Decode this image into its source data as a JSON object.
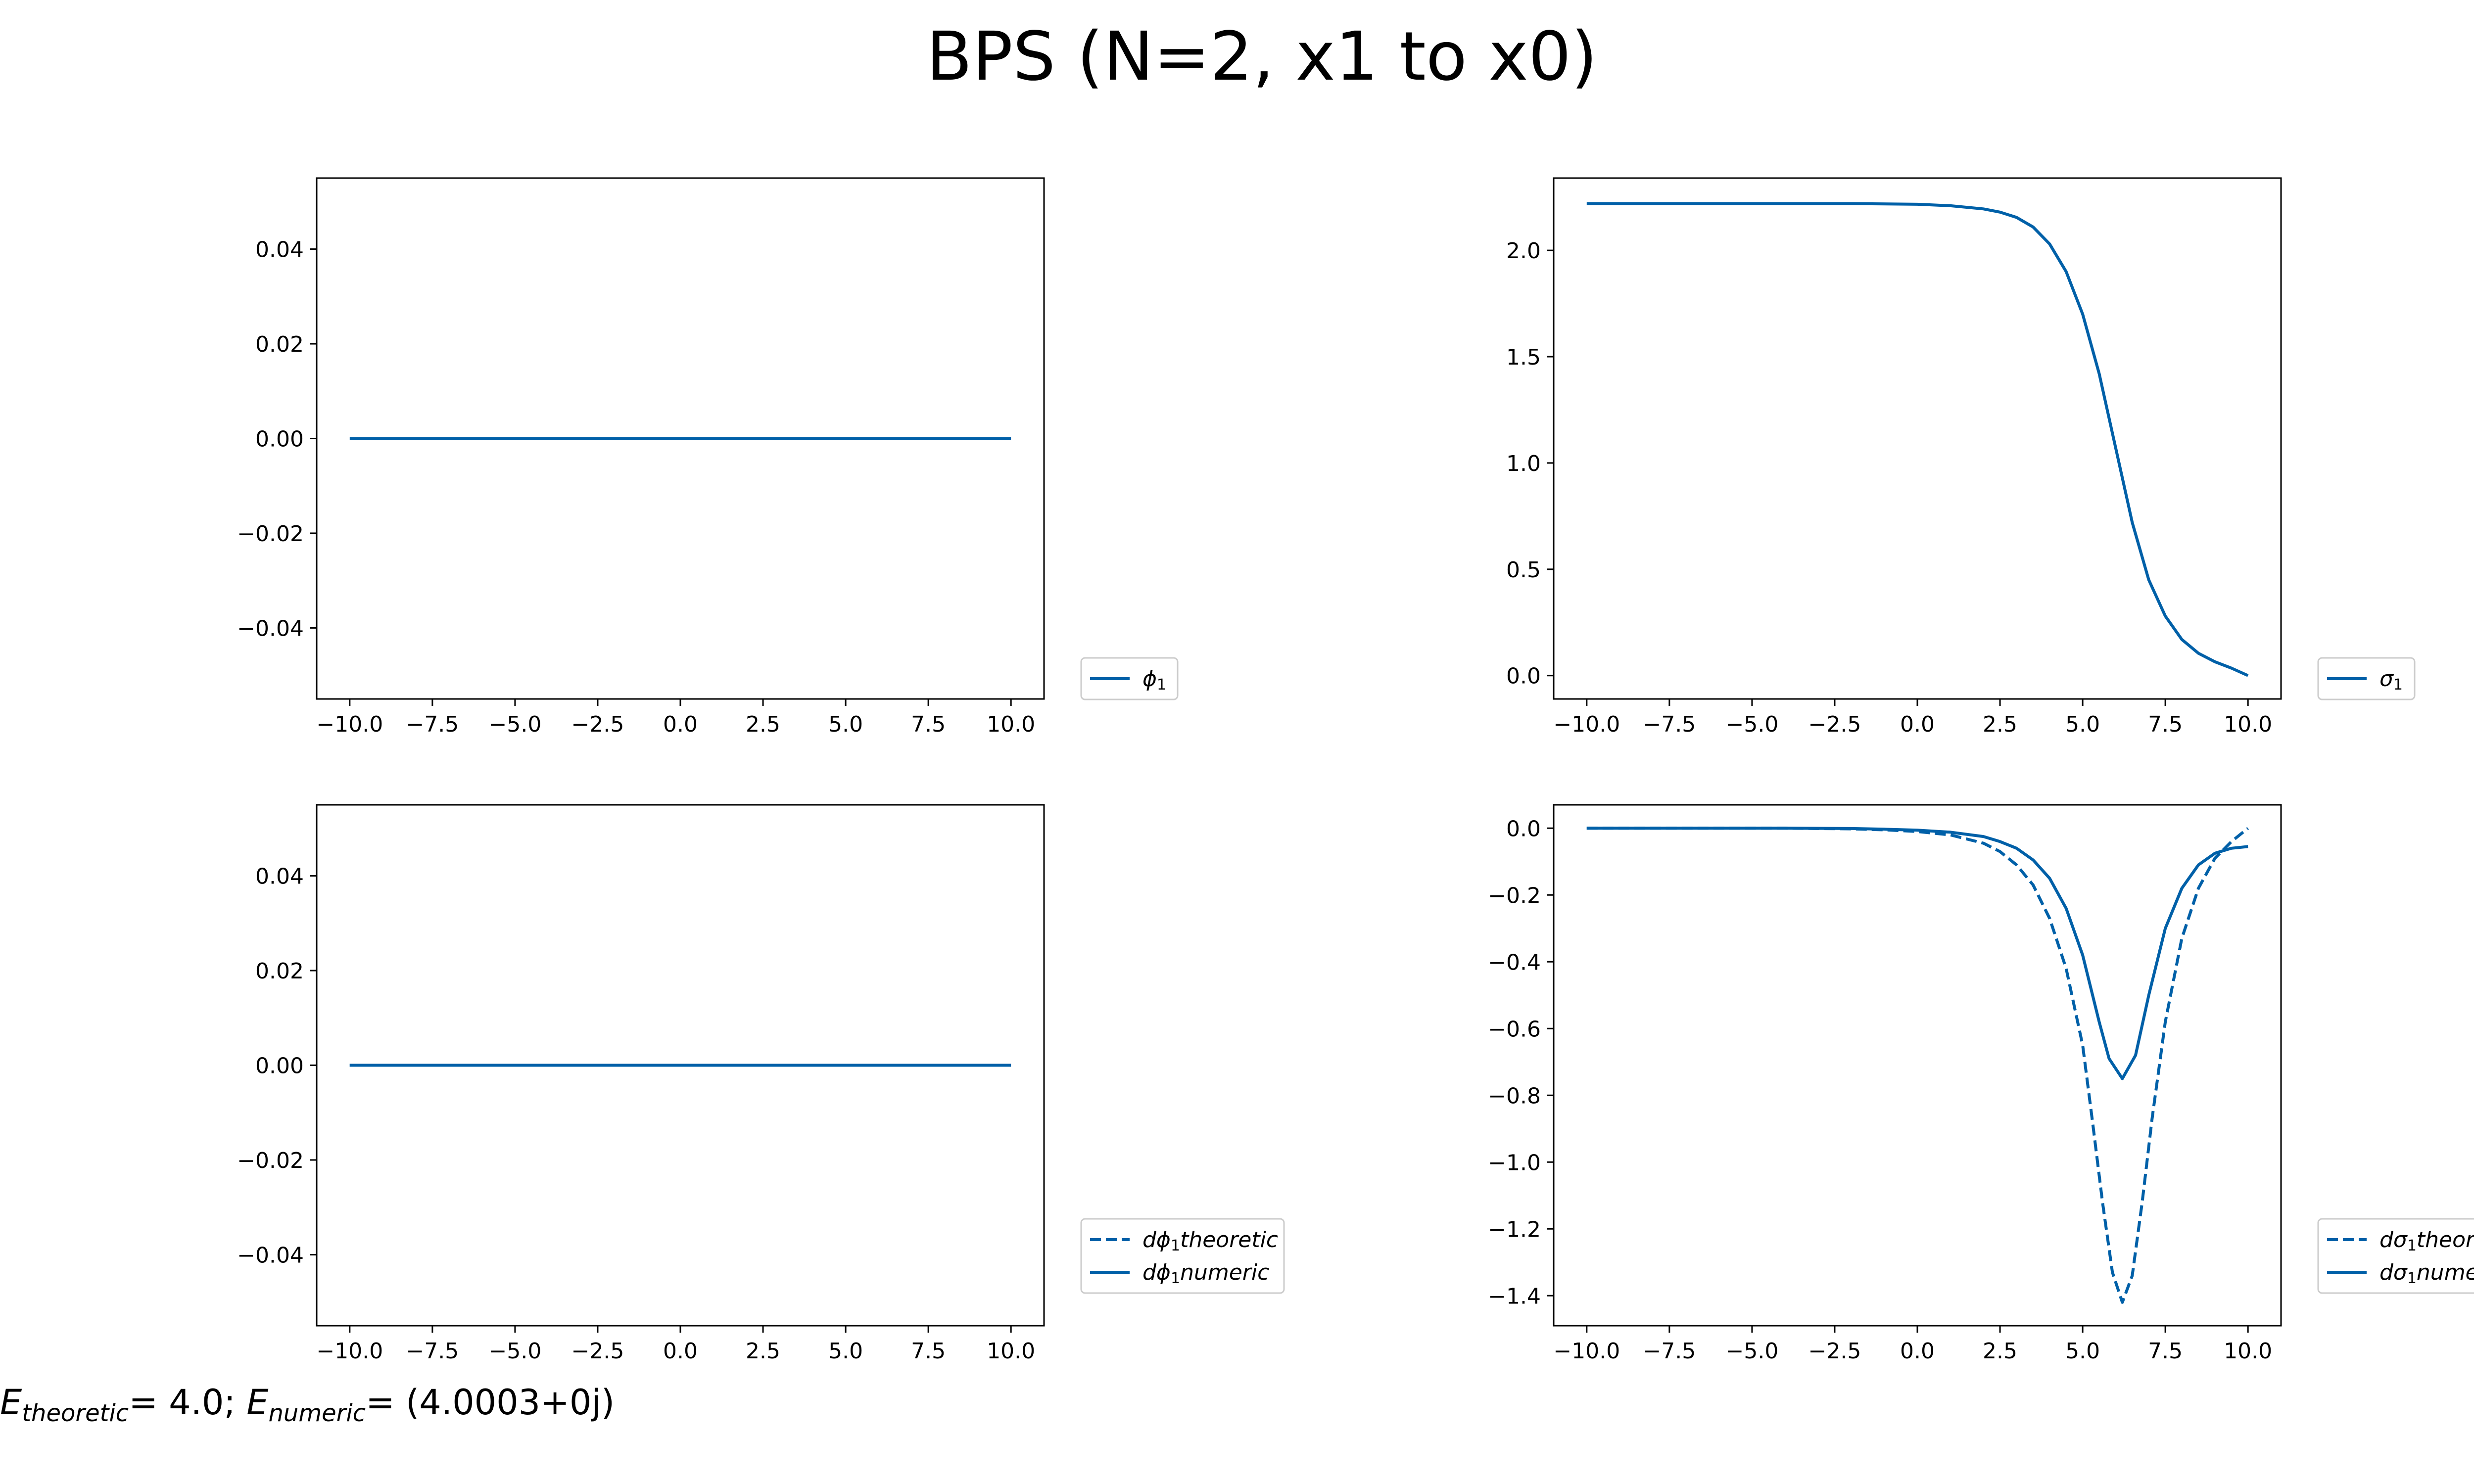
{
  "title": "BPS (N=2, x1 to x0)",
  "footer": {
    "e_theoretic_symbol": "E",
    "e_theoretic_sub": "theoretic",
    "e_theoretic_value": "= 4.0; ",
    "e_numeric_symbol": "E",
    "e_numeric_sub": "numeric",
    "e_numeric_value": "= (4.0003+0j)"
  },
  "colors": {
    "series": "#0060a8",
    "axis": "#000000"
  },
  "chart_data": [
    {
      "id": "phi1",
      "type": "line",
      "xlim": [
        -11,
        11
      ],
      "ylim": [
        -0.055,
        0.055
      ],
      "xticks": [
        -10,
        -7.5,
        -5,
        -2.5,
        0,
        2.5,
        5,
        7.5,
        10
      ],
      "xtick_labels": [
        "−10.0",
        "−7.5",
        "−5.0",
        "−2.5",
        "0.0",
        "2.5",
        "5.0",
        "7.5",
        "10.0"
      ],
      "yticks": [
        0.04,
        0.02,
        0,
        -0.02,
        -0.04
      ],
      "ytick_labels": [
        "0.04",
        "0.02",
        "0.00",
        "−0.02",
        "−0.04"
      ],
      "legend_position": "outside-right-bottom",
      "series": [
        {
          "name_base": "ϕ",
          "name_sub": "1",
          "name_suffix": "",
          "style": "solid",
          "x": [
            -10,
            10
          ],
          "y": [
            0,
            0
          ]
        }
      ]
    },
    {
      "id": "sigma1",
      "type": "line",
      "xlim": [
        -11,
        11
      ],
      "ylim": [
        -0.11,
        2.34
      ],
      "xticks": [
        -10,
        -7.5,
        -5,
        -2.5,
        0,
        2.5,
        5,
        7.5,
        10
      ],
      "xtick_labels": [
        "−10.0",
        "−7.5",
        "−5.0",
        "−2.5",
        "0.0",
        "2.5",
        "5.0",
        "7.5",
        "10.0"
      ],
      "yticks": [
        2.0,
        1.5,
        1.0,
        0.5,
        0.0
      ],
      "ytick_labels": [
        "2.0",
        "1.5",
        "1.0",
        "0.5",
        "0.0"
      ],
      "legend_position": "outside-right-bottom",
      "series": [
        {
          "name_base": "σ",
          "name_sub": "1",
          "name_suffix": "",
          "style": "solid",
          "x": [
            -10,
            -8,
            -6,
            -4,
            -2,
            0,
            1,
            2,
            2.5,
            3,
            3.5,
            4,
            4.5,
            5,
            5.5,
            6,
            6.5,
            7,
            7.5,
            8,
            8.5,
            9,
            9.5,
            10
          ],
          "y": [
            2.22,
            2.22,
            2.22,
            2.22,
            2.22,
            2.217,
            2.21,
            2.195,
            2.18,
            2.155,
            2.11,
            2.03,
            1.9,
            1.7,
            1.42,
            1.07,
            0.72,
            0.45,
            0.28,
            0.17,
            0.105,
            0.065,
            0.035,
            0.0
          ]
        }
      ]
    },
    {
      "id": "dphi1",
      "type": "line",
      "xlim": [
        -11,
        11
      ],
      "ylim": [
        -0.055,
        0.055
      ],
      "xticks": [
        -10,
        -7.5,
        -5,
        -2.5,
        0,
        2.5,
        5,
        7.5,
        10
      ],
      "xtick_labels": [
        "−10.0",
        "−7.5",
        "−5.0",
        "−2.5",
        "0.0",
        "2.5",
        "5.0",
        "7.5",
        "10.0"
      ],
      "yticks": [
        0.04,
        0.02,
        0,
        -0.02,
        -0.04
      ],
      "ytick_labels": [
        "0.04",
        "0.02",
        "0.00",
        "−0.02",
        "−0.04"
      ],
      "legend_position": "outside-right-bottom",
      "series": [
        {
          "name_base": "dϕ",
          "name_sub": "1",
          "name_suffix": "theoretic",
          "style": "dashed",
          "x": [
            -10,
            10
          ],
          "y": [
            0,
            0
          ]
        },
        {
          "name_base": "dϕ",
          "name_sub": "1",
          "name_suffix": "numeric",
          "style": "solid",
          "x": [
            -10,
            10
          ],
          "y": [
            0,
            0
          ]
        }
      ]
    },
    {
      "id": "dsigma1",
      "type": "line",
      "xlim": [
        -11,
        11
      ],
      "ylim": [
        -1.49,
        0.07
      ],
      "xticks": [
        -10,
        -7.5,
        -5,
        -2.5,
        0,
        2.5,
        5,
        7.5,
        10
      ],
      "xtick_labels": [
        "−10.0",
        "−7.5",
        "−5.0",
        "−2.5",
        "0.0",
        "2.5",
        "5.0",
        "7.5",
        "10.0"
      ],
      "yticks": [
        0.0,
        -0.2,
        -0.4,
        -0.6,
        -0.8,
        -1.0,
        -1.2,
        -1.4
      ],
      "ytick_labels": [
        "0.0",
        "−0.2",
        "−0.4",
        "−0.6",
        "−0.8",
        "−1.0",
        "−1.2",
        "−1.4"
      ],
      "legend_position": "outside-right-bottom",
      "series": [
        {
          "name_base": "dσ",
          "name_sub": "1",
          "name_suffix": "theoretic",
          "style": "dashed",
          "x": [
            -10,
            -4,
            -2,
            -1,
            0,
            1,
            2,
            2.5,
            3,
            3.5,
            4,
            4.5,
            5,
            5.3,
            5.6,
            5.9,
            6.2,
            6.5,
            6.8,
            7.1,
            7.5,
            8,
            8.5,
            9,
            9.5,
            10
          ],
          "y": [
            0,
            0,
            -0.002,
            -0.005,
            -0.01,
            -0.02,
            -0.045,
            -0.07,
            -0.11,
            -0.17,
            -0.27,
            -0.42,
            -0.65,
            -0.88,
            -1.12,
            -1.33,
            -1.42,
            -1.34,
            -1.12,
            -0.87,
            -0.58,
            -0.33,
            -0.18,
            -0.09,
            -0.04,
            0.0
          ]
        },
        {
          "name_base": "dσ",
          "name_sub": "1",
          "name_suffix": "numeric",
          "style": "solid",
          "x": [
            -10,
            -4,
            -2,
            -1,
            0,
            1,
            2,
            2.5,
            3,
            3.5,
            4,
            4.5,
            5,
            5.5,
            5.8,
            6.2,
            6.6,
            7,
            7.5,
            8,
            8.5,
            9,
            9.5,
            10
          ],
          "y": [
            0,
            0,
            -0.001,
            -0.003,
            -0.006,
            -0.012,
            -0.025,
            -0.04,
            -0.06,
            -0.095,
            -0.15,
            -0.24,
            -0.38,
            -0.58,
            -0.69,
            -0.75,
            -0.68,
            -0.5,
            -0.3,
            -0.18,
            -0.11,
            -0.075,
            -0.06,
            -0.055
          ]
        }
      ]
    }
  ]
}
